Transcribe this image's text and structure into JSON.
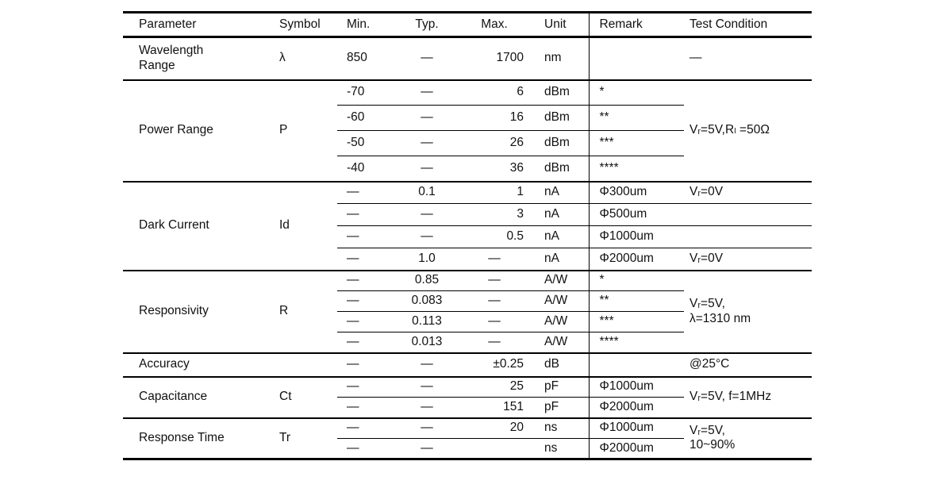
{
  "page": {
    "background": "#ffffff",
    "text_color": "#111111",
    "line_color": "#000000"
  },
  "table": {
    "headers": [
      {
        "key": "parameter",
        "label": "Parameter"
      },
      {
        "key": "symbol",
        "label": "Symbol"
      },
      {
        "key": "min",
        "label": "Min."
      },
      {
        "key": "typ",
        "label": "Typ."
      },
      {
        "key": "max",
        "label": "Max."
      },
      {
        "key": "unit",
        "label": "Unit"
      },
      {
        "key": "remark",
        "label": "Remark"
      },
      {
        "key": "tc",
        "label": "Test Condition"
      }
    ],
    "groups": [
      {
        "id": "wavelength-range",
        "parameter": "Wavelength\nRange",
        "symbol": "λ",
        "divider_span": "remark",
        "tc_span": "—",
        "rows": [
          {
            "min": "850",
            "typ": "—",
            "max": "1700",
            "unit": "nm",
            "remark": ""
          }
        ]
      },
      {
        "id": "power-range",
        "parameter": "Power Range",
        "symbol": "P",
        "divider_span": "remark",
        "tc_span": "Vᵣ=5V,Rₗ =50Ω",
        "rows": [
          {
            "min": "-70",
            "typ": "—",
            "max": "6",
            "unit": "dBm",
            "remark": "*"
          },
          {
            "min": "-60",
            "typ": "—",
            "max": "16",
            "unit": "dBm",
            "remark": "**"
          },
          {
            "min": "-50",
            "typ": "—",
            "max": "26",
            "unit": "dBm",
            "remark": "***"
          },
          {
            "min": "-40",
            "typ": "—",
            "max": "36",
            "unit": "dBm",
            "remark": "****"
          }
        ]
      },
      {
        "id": "dark-current",
        "parameter": "Dark Current",
        "symbol": "Id",
        "divider_span": "full",
        "rows": [
          {
            "min": "—",
            "typ": "0.1",
            "max": "1",
            "unit": "nA",
            "remark": "Φ300um",
            "tc": "Vᵣ=0V"
          },
          {
            "min": "—",
            "typ": "—",
            "max": "3",
            "unit": "nA",
            "remark": "Φ500um",
            "tc": ""
          },
          {
            "min": "—",
            "typ": "—",
            "max": "0.5",
            "unit": "nA",
            "remark": "Φ1000um",
            "tc": ""
          },
          {
            "min": "—",
            "typ": "1.0",
            "max": "—",
            "unit": "nA",
            "remark": "Φ2000um",
            "tc": "Vᵣ=0V"
          }
        ]
      },
      {
        "id": "responsivity",
        "parameter": "Responsivity",
        "symbol": "R",
        "divider_span": "remark",
        "tc_span": "Vᵣ=5V,\nλ=1310 nm",
        "rows": [
          {
            "min": "—",
            "typ": "0.85",
            "max": "—",
            "unit": "A/W",
            "remark": "*"
          },
          {
            "min": "—",
            "typ": "0.083",
            "max": "—",
            "unit": "A/W",
            "remark": "**"
          },
          {
            "min": "—",
            "typ": "0.113",
            "max": "—",
            "unit": "A/W",
            "remark": "***"
          },
          {
            "min": "—",
            "typ": "0.013",
            "max": "—",
            "unit": "A/W",
            "remark": "****"
          }
        ]
      },
      {
        "id": "accuracy",
        "parameter": "Accuracy",
        "symbol": "",
        "divider_span": "remark",
        "rows": [
          {
            "min": "—",
            "typ": "—",
            "max": "±0.25",
            "unit": "dB",
            "remark": "",
            "tc": "@25°C"
          }
        ]
      },
      {
        "id": "capacitance",
        "parameter": "Capacitance",
        "symbol": "Ct",
        "divider_span": "remark",
        "tc_span": "Vᵣ=5V, f=1MHz",
        "rows": [
          {
            "min": "—",
            "typ": "—",
            "max": "25",
            "unit": "pF",
            "remark": "Φ1000um"
          },
          {
            "min": "—",
            "typ": "—",
            "max": "151",
            "unit": "pF",
            "remark": "Φ2000um"
          }
        ]
      },
      {
        "id": "response-time",
        "parameter": "Response Time",
        "symbol": "Tr",
        "divider_span": "remark",
        "tc_span": "Vᵣ=5V,\n10~90%",
        "rows": [
          {
            "min": "—",
            "typ": "—",
            "max": "20",
            "unit": "ns",
            "remark": "Φ1000um"
          },
          {
            "min": "—",
            "typ": "—",
            "max": "",
            "unit": "ns",
            "remark": "Φ2000um"
          }
        ]
      }
    ]
  }
}
